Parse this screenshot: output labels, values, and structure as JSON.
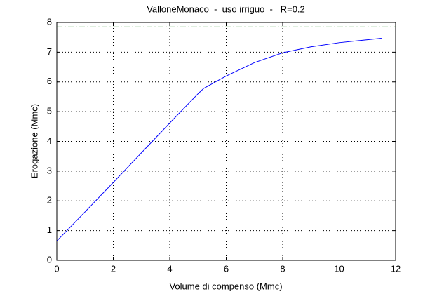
{
  "chart_data": {
    "type": "line",
    "title": "ValloneMonaco  -  uso irriguo  -   R=0.2",
    "xlabel": "Volume di compenso (Mmc)",
    "ylabel": "Erogazione (Mmc)",
    "xlim": [
      0,
      12
    ],
    "xticks": [
      0,
      2,
      4,
      6,
      8,
      10,
      12
    ],
    "ylim": [
      0,
      8
    ],
    "yticks": [
      0,
      1,
      2,
      3,
      4,
      5,
      6,
      7,
      8
    ],
    "grid": true,
    "series": [
      {
        "color": "#0000ff",
        "style": "solid",
        "x": [
          0,
          1,
          2,
          3,
          4,
          5,
          5.2,
          6,
          7,
          8,
          9,
          10,
          11,
          11.5
        ],
        "values": [
          0.65,
          1.63,
          2.62,
          3.62,
          4.62,
          5.6,
          5.78,
          6.2,
          6.65,
          6.98,
          7.18,
          7.32,
          7.42,
          7.47
        ]
      },
      {
        "color": "#008000",
        "style": "dashdot",
        "x": [
          0,
          12
        ],
        "values": [
          7.85,
          7.85
        ]
      }
    ]
  }
}
